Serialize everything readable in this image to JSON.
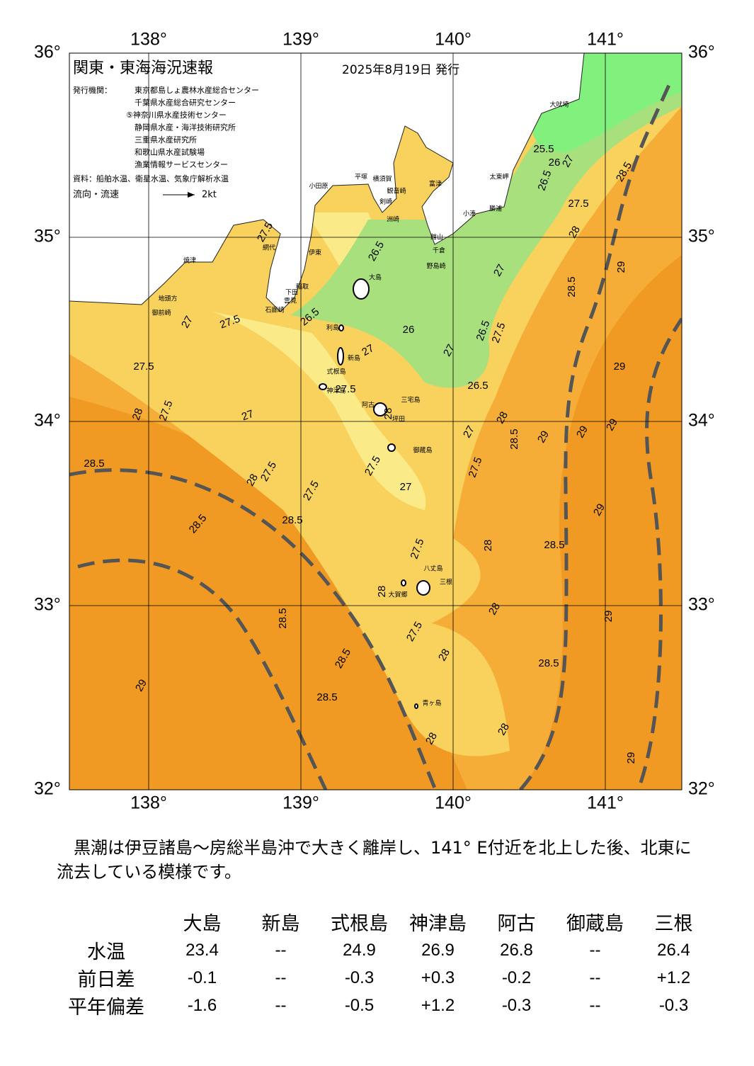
{
  "map": {
    "title": "関東・東海海況速報",
    "date": "2025年8月19日 発行",
    "issuer_label": "発行機関：",
    "issuers": [
      "東京都島しょ農林水産総合センター",
      "千葉県水産総合研究センター",
      "⑤神奈川県水産技術センター",
      "静岡県水産・海洋技術研究所",
      "三重県水産研究所",
      "和歌山県水産試験場",
      "漁業情報サービスセンター"
    ],
    "source": "資料：船舶水温、衛星水温、気象庁解析水温",
    "flow_legend": "流向・流速",
    "flow_scale": "2kt",
    "lon_range": [
      137.5,
      141.5
    ],
    "lat_range": [
      32,
      36
    ],
    "lon_ticks": [
      {
        "value": 138,
        "label": "138°"
      },
      {
        "value": 139,
        "label": "139°"
      },
      {
        "value": 140,
        "label": "140°"
      },
      {
        "value": 141,
        "label": "141°"
      }
    ],
    "lat_ticks": [
      {
        "value": 32,
        "label": "32°"
      },
      {
        "value": 33,
        "label": "33°"
      },
      {
        "value": 34,
        "label": "34°"
      },
      {
        "value": 35,
        "label": "35°"
      },
      {
        "value": 36,
        "label": "36°"
      }
    ],
    "places": [
      "大島",
      "利島",
      "新島",
      "式根島",
      "神津島",
      "三宅島",
      "阿古",
      "坪田",
      "御蔵島",
      "八丈島",
      "三根",
      "大賀郷",
      "青ヶ島",
      "大吠埼",
      "太東岬",
      "勝浦",
      "小湊",
      "館山",
      "千倉",
      "野島崎",
      "洲崎",
      "富津",
      "観音崎",
      "横須賀",
      "平塚",
      "小田原",
      "剣崎",
      "伊東",
      "稲取",
      "下田",
      "石廊崎",
      "雲見",
      "網代",
      "焼津",
      "御前崎",
      "地頭方"
    ],
    "contour_labels": [
      "27.5",
      "26.5",
      "26.5",
      "26",
      "27",
      "27",
      "26.5",
      "27.5",
      "27",
      "28",
      "27.5",
      "28.5",
      "25.5",
      "26.5",
      "26",
      "27",
      "28.5",
      "29",
      "29",
      "29",
      "29",
      "29",
      "28.5",
      "28",
      "27",
      "26.5",
      "27.5",
      "28",
      "28.5",
      "29",
      "28",
      "29",
      "28.5",
      "28",
      "27.5",
      "28",
      "27.5",
      "27",
      "27.5",
      "28",
      "27.5",
      "27.5",
      "28",
      "27.5",
      "28.5",
      "28.5",
      "28.5",
      "28",
      "27.5",
      "27.5",
      "27",
      "27.5",
      "27",
      "28.5",
      "28.5",
      "29",
      "28.5",
      "28",
      "28",
      "29"
    ]
  },
  "summary": "黒潮は伊豆諸島～房総半島沖で大きく離岸し、141° E付近を北上した後、北東に流去している模様です。",
  "table": {
    "columns": [
      "大島",
      "新島",
      "式根島",
      "神津島",
      "阿古",
      "御蔵島",
      "三根"
    ],
    "rows": [
      {
        "label": "水温",
        "cells": [
          "23.4",
          "--",
          "24.9",
          "26.9",
          "26.8",
          "--",
          "26.4"
        ]
      },
      {
        "label": "前日差",
        "cells": [
          "-0.1",
          "--",
          "-0.3",
          "+0.3",
          "-0.2",
          "--",
          "+1.2"
        ]
      },
      {
        "label": "平年偏差",
        "cells": [
          "-1.6",
          "--",
          "-0.5",
          "+1.2",
          "-0.3",
          "--",
          "-0.3"
        ]
      }
    ]
  }
}
